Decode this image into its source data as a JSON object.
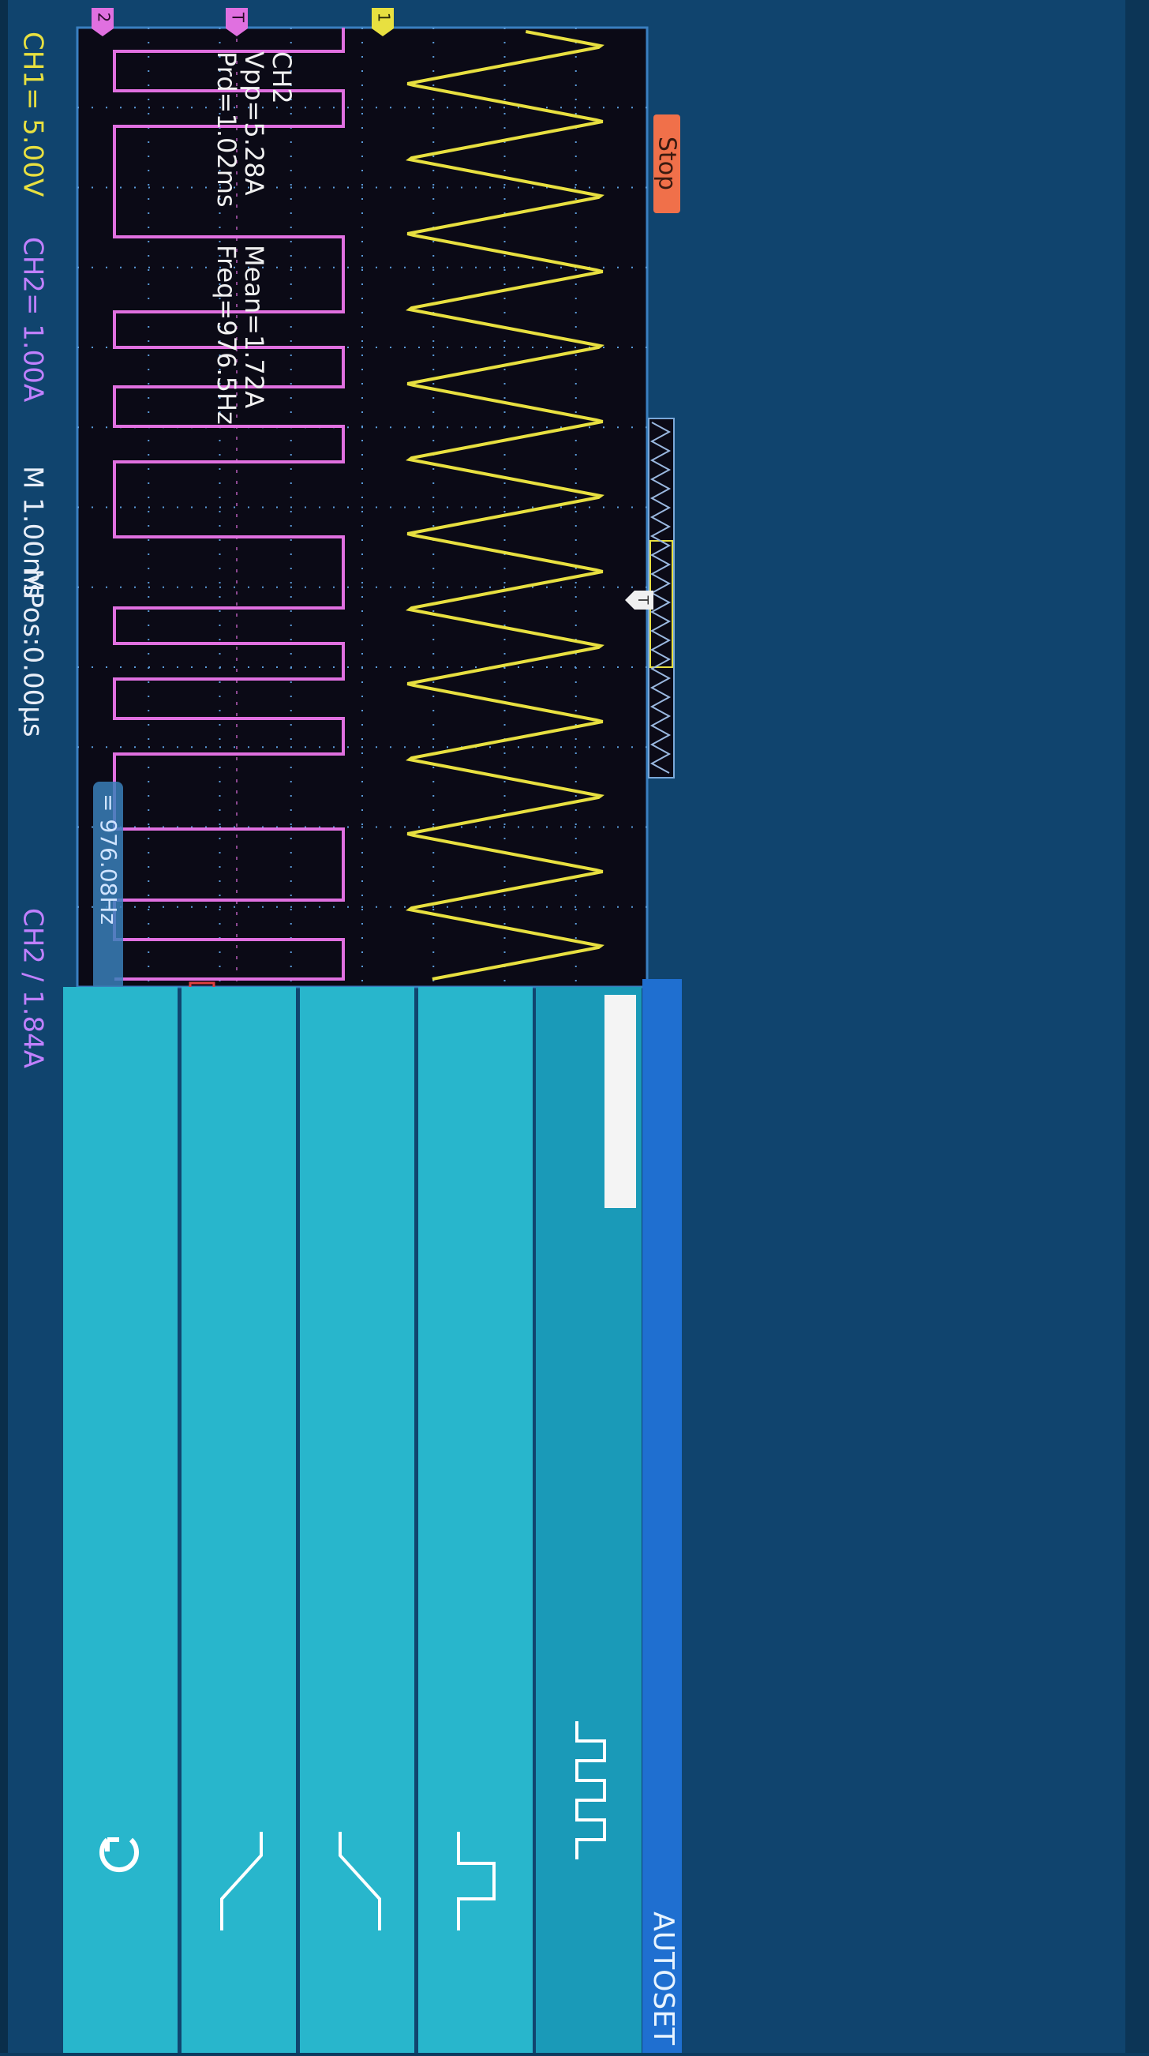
{
  "status": "Stop",
  "channel_markers": {
    "ch2": "2",
    "trigger_level": "T",
    "ch1": "1",
    "trigger_position": "T"
  },
  "measurements": {
    "channel": "CH2",
    "vpp": "Vpp=5.28A",
    "period": "Prd=1.02ms",
    "mean": "Mean=1.72A",
    "frequency": "Freq=976.5Hz"
  },
  "frequency_counter": "= 976.08Hz",
  "menu": {
    "title": "AUTOSET"
  },
  "status_bar": {
    "ch1": "CH1= 5.00V",
    "ch2": "CH2= 1.00A",
    "timebase": "M 1.00ms",
    "position": "MPos:0.00µs",
    "trigger": "CH2 / 1.84A"
  }
}
